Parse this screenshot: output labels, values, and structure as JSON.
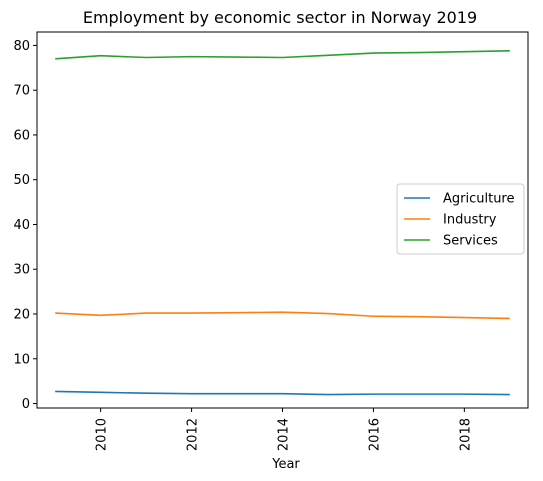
{
  "chart_data": {
    "type": "line",
    "title": "Employment by economic sector in Norway 2019",
    "xlabel": "Year",
    "ylabel": "",
    "x": [
      2009,
      2010,
      2011,
      2012,
      2013,
      2014,
      2015,
      2016,
      2017,
      2018,
      2019
    ],
    "xlim": [
      2008.6,
      2019.4
    ],
    "ylim": [
      -1,
      83
    ],
    "xticks": [
      2010,
      2012,
      2014,
      2016,
      2018
    ],
    "yticks": [
      0,
      10,
      20,
      30,
      40,
      50,
      60,
      70,
      80
    ],
    "grid": false,
    "legend_position": "center-right",
    "series": [
      {
        "name": "Agriculture",
        "color": "#1f77b4",
        "values": [
          2.7,
          2.5,
          2.3,
          2.2,
          2.2,
          2.2,
          2.0,
          2.1,
          2.1,
          2.1,
          2.0
        ]
      },
      {
        "name": "Industry",
        "color": "#ff7f0e",
        "values": [
          20.2,
          19.7,
          20.2,
          20.2,
          20.3,
          20.4,
          20.1,
          19.5,
          19.4,
          19.2,
          19.0
        ]
      },
      {
        "name": "Services",
        "color": "#2ca02c",
        "values": [
          77.0,
          77.7,
          77.3,
          77.5,
          77.4,
          77.3,
          77.8,
          78.3,
          78.4,
          78.6,
          78.8
        ]
      }
    ]
  }
}
